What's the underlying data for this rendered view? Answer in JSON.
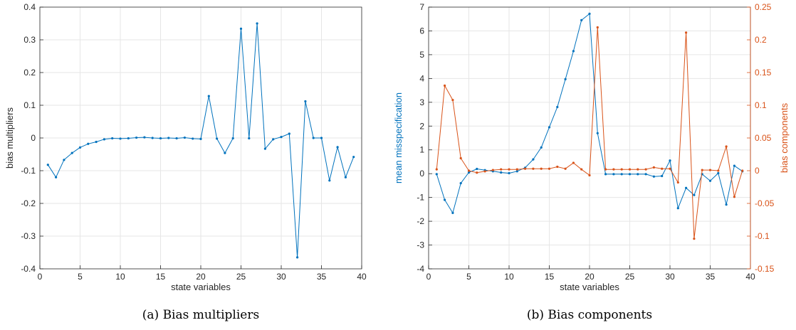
{
  "colors": {
    "blue": "#0072BD",
    "orange": "#D95319",
    "grid": "#e6e6e6",
    "axis": "#262626"
  },
  "chart_data": [
    {
      "type": "line",
      "caption": "(a) Bias multipliers",
      "xlabel": "state variables",
      "ylabel": "bias multipliers",
      "xlim": [
        0,
        40
      ],
      "ylim": [
        -0.4,
        0.4
      ],
      "xticks": [
        0,
        5,
        10,
        15,
        20,
        25,
        30,
        35,
        40
      ],
      "yticks": [
        -0.4,
        -0.3,
        -0.2,
        -0.1,
        0,
        0.1,
        0.2,
        0.3,
        0.4
      ],
      "grid": true,
      "series": [
        {
          "color": "#0072BD",
          "x": [
            1,
            2,
            3,
            4,
            5,
            6,
            7,
            8,
            9,
            10,
            11,
            12,
            13,
            14,
            15,
            16,
            17,
            18,
            19,
            20,
            21,
            22,
            23,
            24,
            25,
            26,
            27,
            28,
            29,
            30,
            31,
            32,
            33,
            34,
            35,
            36,
            37,
            38,
            39
          ],
          "y": [
            -0.082,
            -0.12,
            -0.067,
            -0.046,
            -0.029,
            -0.018,
            -0.012,
            -0.004,
            -0.001,
            -0.002,
            -0.001,
            0.001,
            0.002,
            0.0,
            -0.001,
            0.0,
            -0.001,
            0.001,
            -0.002,
            -0.003,
            0.128,
            -0.002,
            -0.046,
            -0.001,
            0.334,
            -0.001,
            0.35,
            -0.033,
            -0.004,
            0.003,
            0.013,
            -0.365,
            0.112,
            0.0,
            0.0,
            -0.13,
            -0.028,
            -0.12,
            -0.058
          ]
        }
      ]
    },
    {
      "type": "line",
      "caption": "(b) Bias components",
      "xlabel": "state variables",
      "ylabel": "mean misspecification",
      "ylabel_right": "bias components",
      "xlim": [
        0,
        40
      ],
      "ylim": [
        -4,
        7
      ],
      "ylim_right": [
        -0.15,
        0.25
      ],
      "xticks": [
        0,
        5,
        10,
        15,
        20,
        25,
        30,
        35,
        40
      ],
      "yticks": [
        -4,
        -3,
        -2,
        -1,
        0,
        1,
        2,
        3,
        4,
        5,
        6,
        7
      ],
      "yticks_right": [
        -0.15,
        -0.1,
        -0.05,
        0,
        0.05,
        0.1,
        0.15,
        0.2,
        0.25
      ],
      "grid": true,
      "series": [
        {
          "axis": "left",
          "color": "#0072BD",
          "x": [
            1,
            2,
            3,
            4,
            5,
            6,
            7,
            8,
            9,
            10,
            11,
            12,
            13,
            14,
            15,
            16,
            17,
            18,
            19,
            20,
            21,
            22,
            23,
            24,
            25,
            26,
            27,
            28,
            29,
            30,
            31,
            32,
            33,
            34,
            35,
            36,
            37,
            38,
            39
          ],
          "y": [
            -0.02,
            -1.1,
            -1.65,
            -0.4,
            0.05,
            0.2,
            0.15,
            0.1,
            0.05,
            0.02,
            0.1,
            0.25,
            0.6,
            1.1,
            1.95,
            2.8,
            3.97,
            5.15,
            6.45,
            6.72,
            1.7,
            -0.02,
            -0.02,
            -0.02,
            -0.02,
            -0.02,
            -0.02,
            -0.12,
            -0.1,
            0.55,
            -1.45,
            -0.6,
            -0.9,
            -0.02,
            -0.3,
            0.02,
            -1.3,
            0.33,
            0.1
          ]
        },
        {
          "axis": "right",
          "color": "#D95319",
          "x": [
            1,
            2,
            3,
            4,
            5,
            6,
            7,
            8,
            9,
            10,
            11,
            12,
            13,
            14,
            15,
            16,
            17,
            18,
            19,
            20,
            21,
            22,
            23,
            24,
            25,
            26,
            27,
            28,
            29,
            30,
            31,
            32,
            33,
            34,
            35,
            36,
            37,
            38,
            39
          ],
          "y": [
            0.002,
            0.13,
            0.108,
            0.019,
            0.0,
            -0.003,
            -0.001,
            0.001,
            0.002,
            0.002,
            0.002,
            0.003,
            0.003,
            0.003,
            0.003,
            0.006,
            0.003,
            0.012,
            0.002,
            -0.007,
            0.219,
            0.002,
            0.002,
            0.002,
            0.002,
            0.002,
            0.002,
            0.005,
            0.003,
            0.003,
            -0.018,
            0.211,
            -0.104,
            0.001,
            0.001,
            0.0,
            0.037,
            -0.04,
            0.0
          ]
        }
      ]
    }
  ]
}
